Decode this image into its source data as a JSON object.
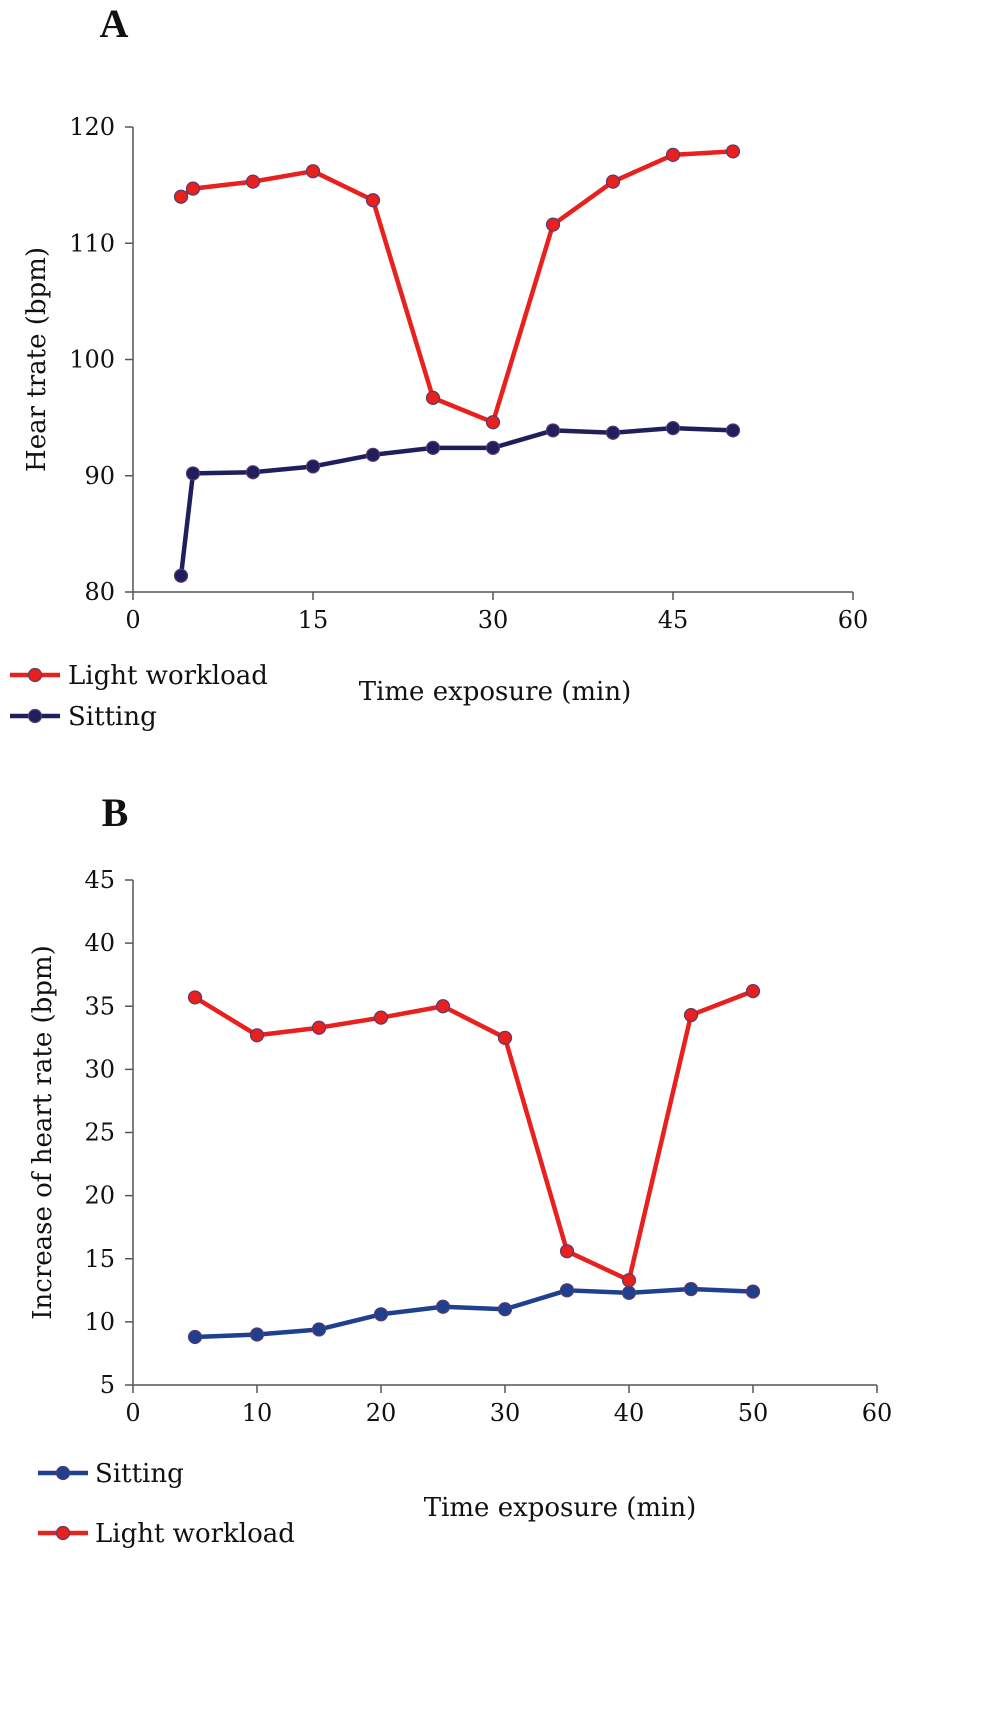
{
  "chart_data": [
    {
      "type": "line",
      "panel_label": "A",
      "xlabel": "Time exposure (min)",
      "ylabel": "Hear trate (bpm)",
      "xlim": [
        0,
        60
      ],
      "ylim": [
        80,
        120
      ],
      "xticks": [
        "0",
        "15",
        "30",
        "45",
        "60"
      ],
      "yticks": [
        "80",
        "90",
        "100",
        "110",
        "120"
      ],
      "grid": false,
      "legend_placement": "bottom-left",
      "series": [
        {
          "name": "Light workload",
          "color": "#e8211f",
          "x": [
            4,
            5,
            10,
            15,
            20,
            25,
            30,
            35,
            40,
            45,
            50
          ],
          "y": [
            114,
            114.7,
            115.3,
            116.2,
            113.7,
            96.7,
            94.6,
            111.6,
            115.3,
            117.6,
            117.9
          ]
        },
        {
          "name": "Sitting",
          "color": "#1f1f5e",
          "x": [
            4,
            5,
            10,
            15,
            20,
            25,
            30,
            35,
            40,
            45,
            50
          ],
          "y": [
            81.4,
            90.2,
            90.3,
            90.8,
            91.8,
            92.4,
            92.4,
            93.9,
            93.7,
            94.1,
            93.9
          ]
        }
      ]
    },
    {
      "type": "line",
      "panel_label": "B",
      "xlabel": "Time exposure (min)",
      "ylabel": "Increase of heart rate (bpm)",
      "xlim": [
        0,
        60
      ],
      "ylim": [
        5,
        45
      ],
      "xticks": [
        "0",
        "10",
        "20",
        "30",
        "40",
        "50",
        "60"
      ],
      "yticks": [
        "5",
        "10",
        "15",
        "20",
        "25",
        "30",
        "35",
        "40",
        "45"
      ],
      "grid": false,
      "legend_placement": "bottom-left",
      "series": [
        {
          "name": "Sitting",
          "color": "#1f3f8f",
          "x": [
            5,
            10,
            15,
            20,
            25,
            30,
            35,
            40,
            45,
            50
          ],
          "y": [
            8.8,
            9.0,
            9.4,
            10.6,
            11.2,
            11.0,
            12.5,
            12.3,
            12.6,
            12.4
          ]
        },
        {
          "name": "Light workload",
          "color": "#e8211f",
          "x": [
            5,
            10,
            15,
            20,
            25,
            30,
            35,
            40,
            45,
            50
          ],
          "y": [
            35.7,
            32.7,
            33.3,
            34.1,
            35.0,
            32.5,
            15.6,
            13.3,
            34.3,
            36.2
          ]
        }
      ]
    }
  ]
}
